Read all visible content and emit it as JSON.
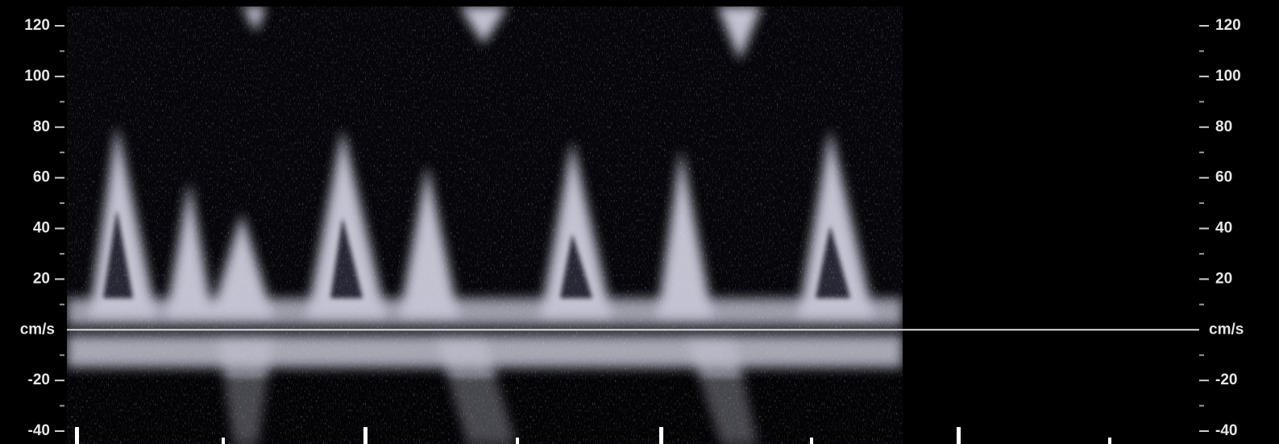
{
  "chart_data": {
    "type": "doppler",
    "ylim": [
      -40,
      120
    ],
    "yticks": [
      120,
      100,
      80,
      60,
      40,
      20,
      {
        "value": 0,
        "label": "cm/s"
      },
      -20,
      -40
    ],
    "yminorticks": [
      110,
      90,
      70,
      50,
      30,
      10,
      -10,
      -30
    ]
  }
}
